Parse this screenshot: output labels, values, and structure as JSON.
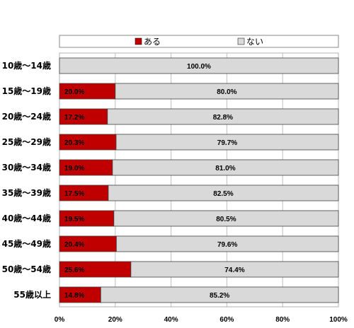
{
  "chart_data": {
    "type": "bar",
    "orientation": "horizontal",
    "stacked": true,
    "normalized_percent": true,
    "categories": [
      "10歳～14歳",
      "15歳～19歳",
      "20歳～24歳",
      "25歳～29歳",
      "30歳～34歳",
      "35歳～39歳",
      "40歳～44歳",
      "45歳～49歳",
      "50歳～54歳",
      "55歳以上"
    ],
    "series": [
      {
        "name": "ある",
        "color": "#c00000",
        "values": [
          0.0,
          20.0,
          17.2,
          20.3,
          19.0,
          17.5,
          19.5,
          20.4,
          25.6,
          14.8
        ],
        "labels": [
          "",
          "20.0%",
          "17.2%",
          "20.3%",
          "19.0%",
          "17.5%",
          "19.5%",
          "20.4%",
          "25.6%",
          "14.8%"
        ]
      },
      {
        "name": "ない",
        "color": "#d9d9d9",
        "values": [
          100.0,
          80.0,
          82.8,
          79.7,
          81.0,
          82.5,
          80.5,
          79.6,
          74.4,
          85.2
        ],
        "labels": [
          "100.0%",
          "80.0%",
          "82.8%",
          "79.7%",
          "81.0%",
          "82.5%",
          "80.5%",
          "79.6%",
          "74.4%",
          "85.2%"
        ]
      }
    ],
    "x_ticks": [
      "0%",
      "20%",
      "40%",
      "60%",
      "80%",
      "100%"
    ],
    "xlim": [
      0,
      100
    ],
    "title": "",
    "xlabel": "",
    "ylabel": "",
    "grid": true,
    "legend_position": "top"
  }
}
